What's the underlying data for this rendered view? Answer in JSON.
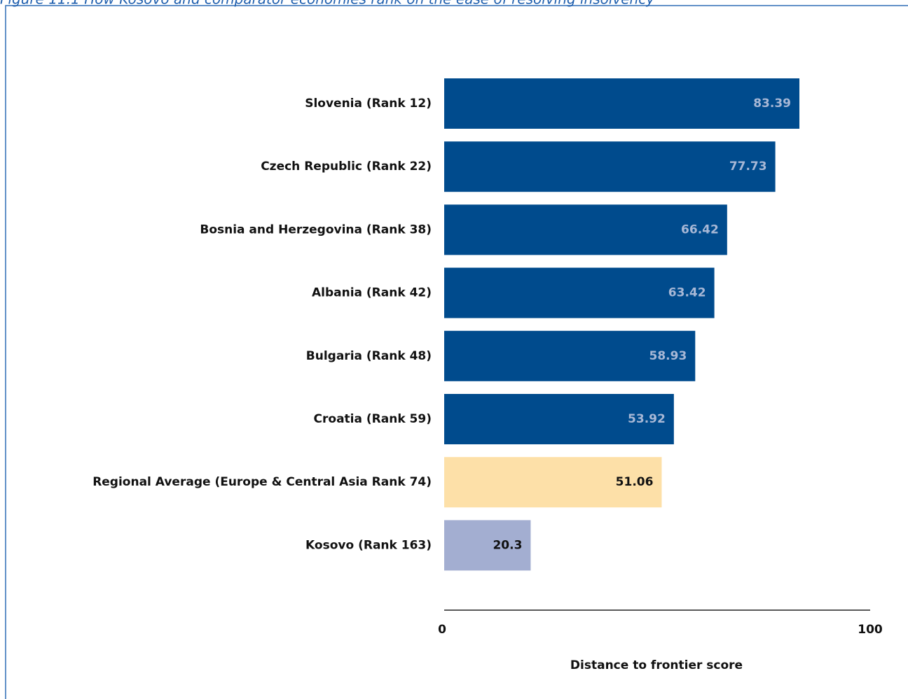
{
  "chart_data": {
    "type": "bar",
    "orientation": "horizontal",
    "title": "Figure 11.1 How Kosovo and comparator economies rank on the ease of resolving insolvency",
    "categories": [
      "Slovenia (Rank 12)",
      "Czech Republic (Rank 22)",
      "Bosnia and Herzegovina (Rank 38)",
      "Albania (Rank 42)",
      "Bulgaria (Rank 48)",
      "Croatia (Rank 59)",
      "Regional Average (Europe & Central Asia Rank 74)",
      "Kosovo (Rank 163)"
    ],
    "values": [
      83.39,
      77.73,
      66.42,
      63.42,
      58.93,
      53.92,
      51.06,
      20.3
    ],
    "colors": [
      "#004b8d",
      "#004b8d",
      "#004b8d",
      "#004b8d",
      "#004b8d",
      "#004b8d",
      "#fde0a8",
      "#a3aed1"
    ],
    "xlim": [
      0,
      100
    ],
    "xticks": [
      0,
      100
    ],
    "xlabel": "Distance to frontier score"
  }
}
